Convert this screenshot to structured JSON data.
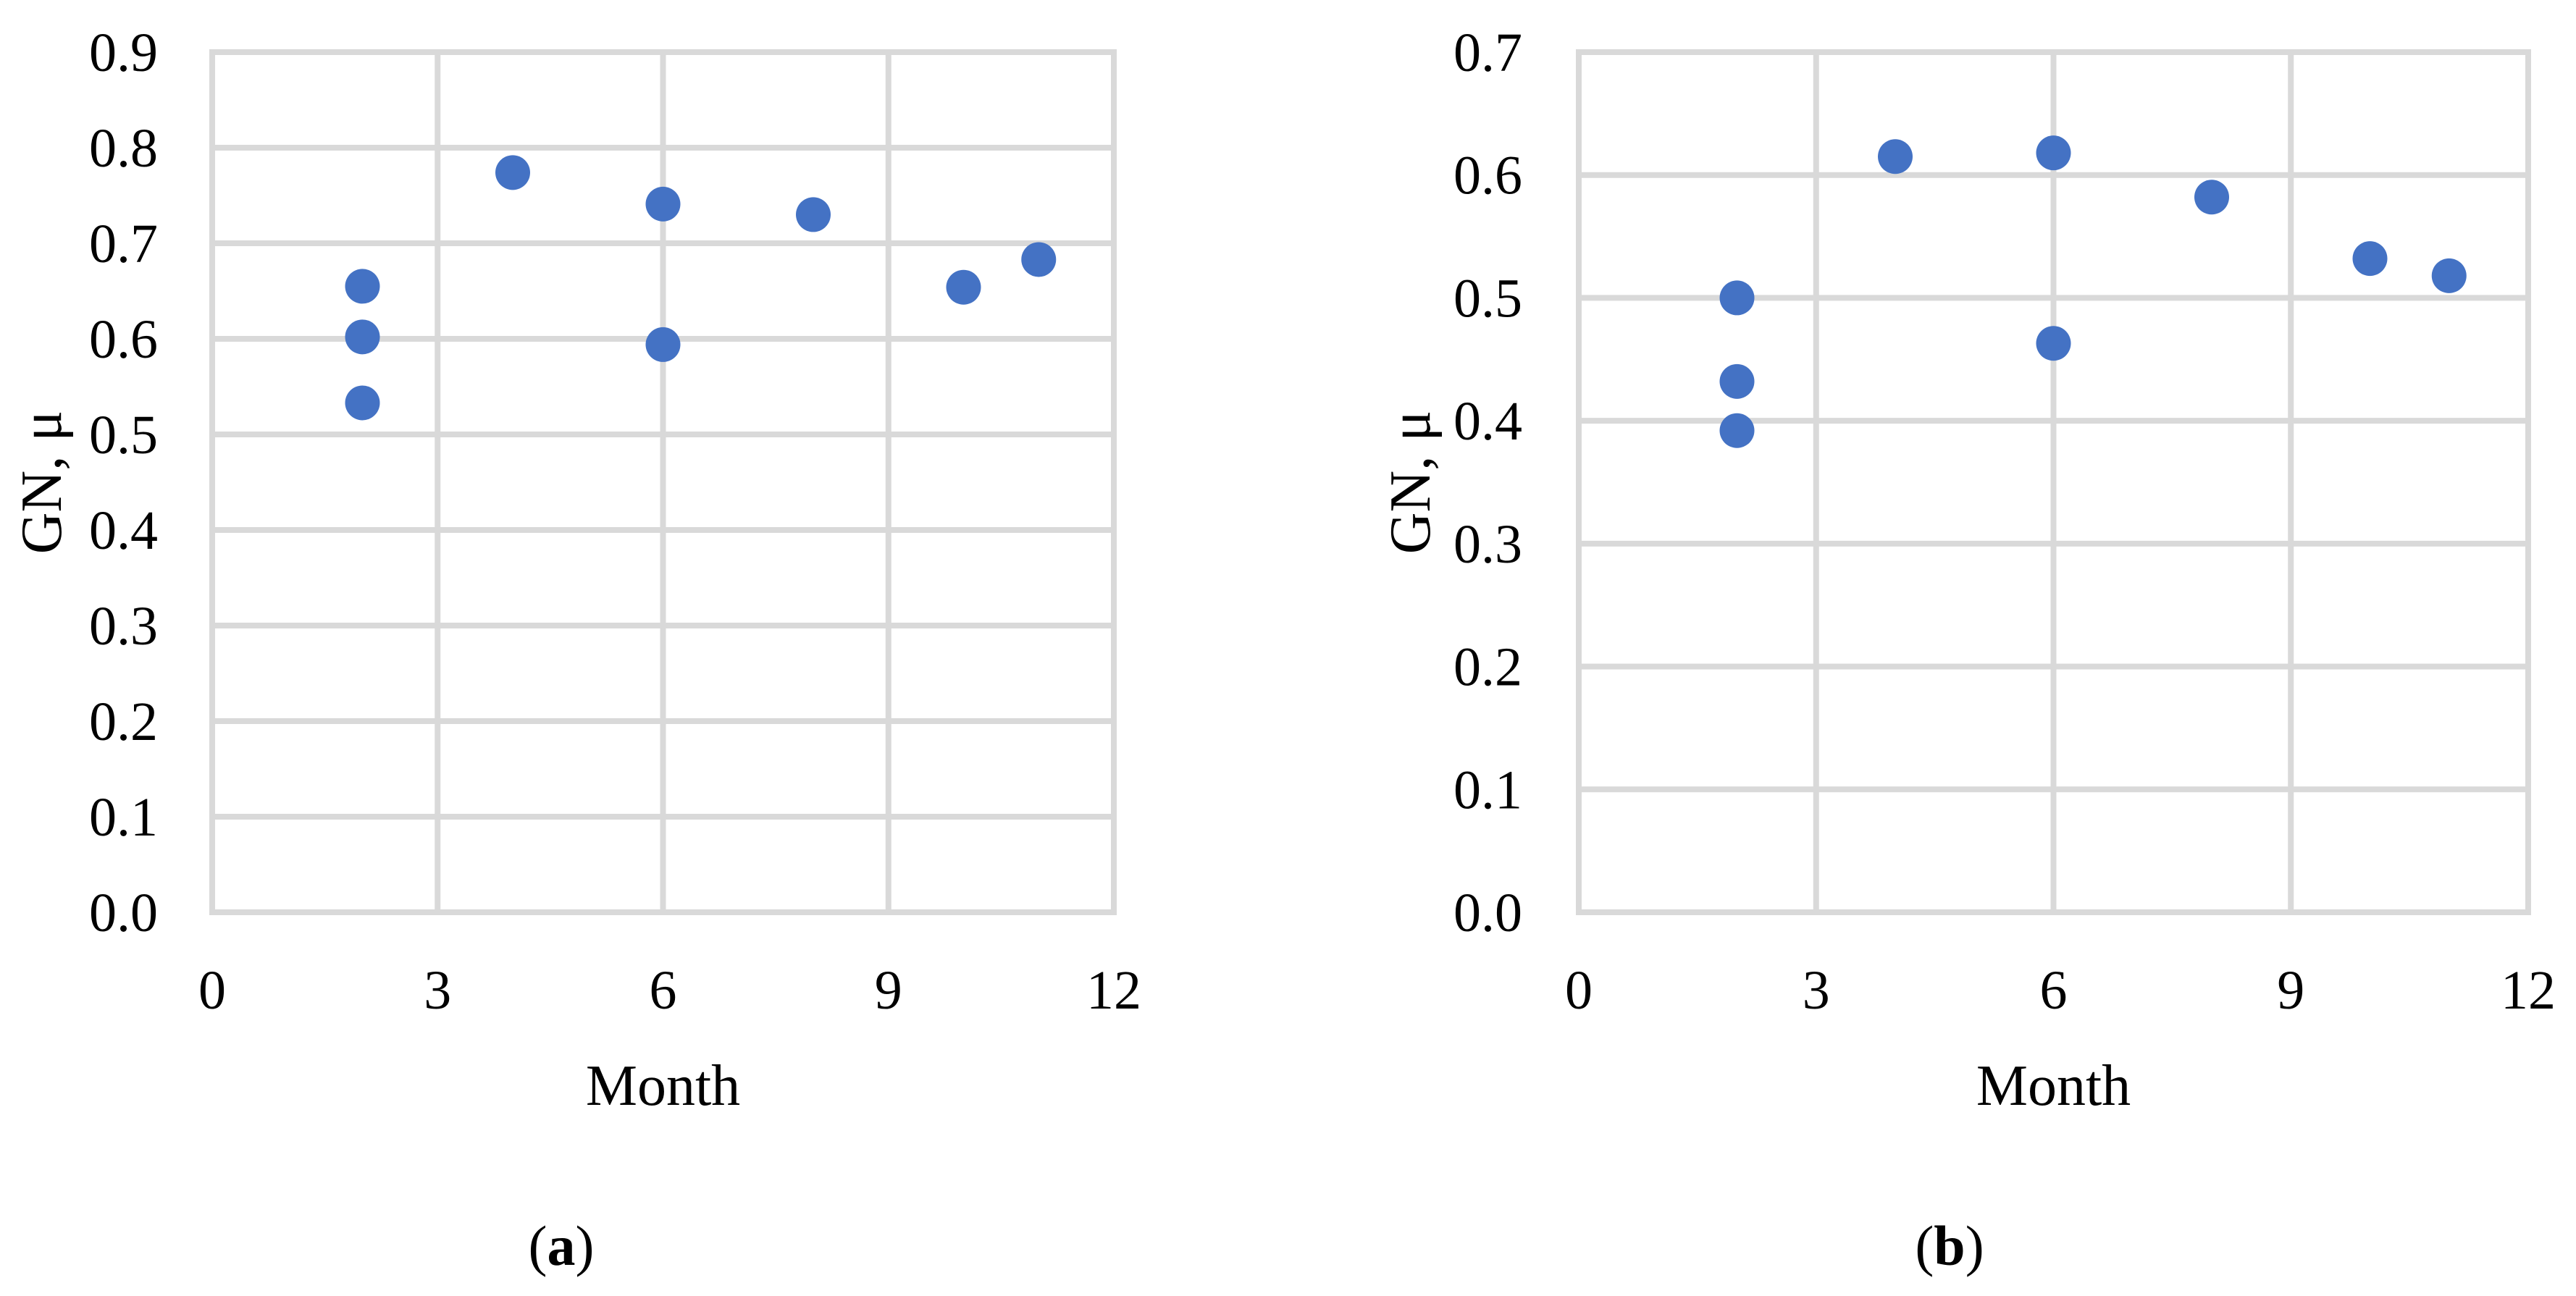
{
  "figure": {
    "background": "#FFFFFF",
    "marker_color": "#4472C4",
    "grid_color": "#D9D9D9",
    "text_color": "#000000"
  },
  "chart_data": [
    {
      "type": "scatter",
      "panel": "a",
      "caption": {
        "open": "(",
        "letter": "a",
        "close": ")"
      },
      "xlabel": "Month",
      "ylabel": "GN, μ",
      "xlim": [
        0,
        12
      ],
      "ylim": [
        0,
        0.9
      ],
      "x_ticks": [
        0,
        3,
        6,
        9,
        12
      ],
      "y_ticks": [
        "0.0",
        "0.1",
        "0.2",
        "0.3",
        "0.4",
        "0.5",
        "0.6",
        "0.7",
        "0.8",
        "0.9"
      ],
      "grid": true,
      "legend": "none",
      "points": [
        {
          "x": 2,
          "y": 0.655
        },
        {
          "x": 2,
          "y": 0.602
        },
        {
          "x": 2,
          "y": 0.533
        },
        {
          "x": 4,
          "y": 0.774
        },
        {
          "x": 6,
          "y": 0.741
        },
        {
          "x": 6,
          "y": 0.594
        },
        {
          "x": 8,
          "y": 0.73
        },
        {
          "x": 10,
          "y": 0.654
        },
        {
          "x": 11,
          "y": 0.683
        }
      ]
    },
    {
      "type": "scatter",
      "panel": "b",
      "caption": {
        "open": "(",
        "letter": "b",
        "close": ")"
      },
      "xlabel": "Month",
      "ylabel": "GN, μ",
      "xlim": [
        0,
        12
      ],
      "ylim": [
        0,
        0.7
      ],
      "x_ticks": [
        0,
        3,
        6,
        9,
        12
      ],
      "y_ticks": [
        "0.0",
        "0.1",
        "0.2",
        "0.3",
        "0.4",
        "0.5",
        "0.6",
        "0.7"
      ],
      "grid": true,
      "legend": "none",
      "points": [
        {
          "x": 2,
          "y": 0.5
        },
        {
          "x": 2,
          "y": 0.432
        },
        {
          "x": 2,
          "y": 0.392
        },
        {
          "x": 4,
          "y": 0.615
        },
        {
          "x": 6,
          "y": 0.618
        },
        {
          "x": 6,
          "y": 0.463
        },
        {
          "x": 8,
          "y": 0.582
        },
        {
          "x": 10,
          "y": 0.532
        },
        {
          "x": 11,
          "y": 0.518
        }
      ]
    }
  ]
}
